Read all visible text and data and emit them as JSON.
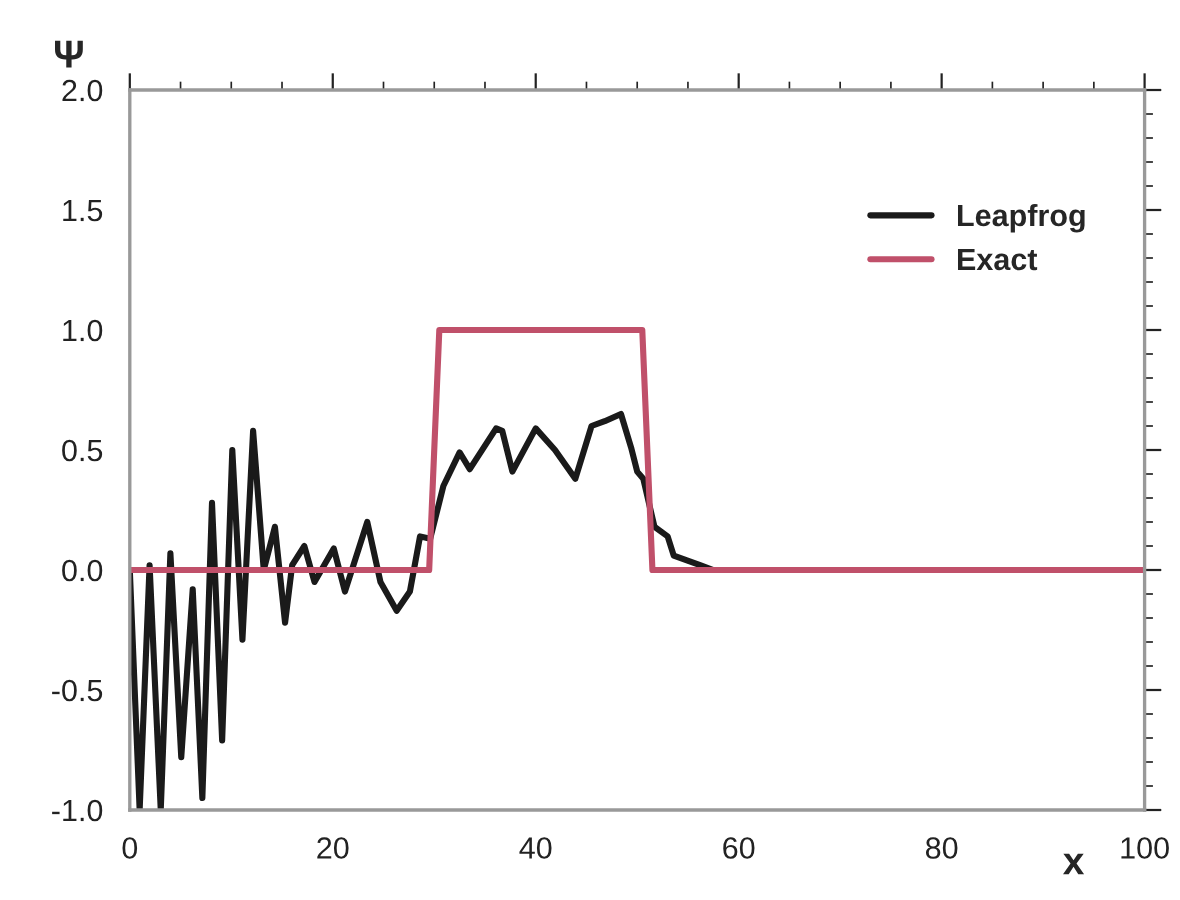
{
  "chart_data": {
    "type": "line",
    "ylabel": "Ψ",
    "xlabel": "x",
    "xlim": [
      0,
      100
    ],
    "ylim": [
      -1.0,
      2.0
    ],
    "xticks": [
      0,
      20,
      40,
      60,
      80,
      100
    ],
    "yticks": [
      {
        "value": -1.0,
        "label": "-1.0"
      },
      {
        "value": -0.5,
        "label": "-0.5"
      },
      {
        "value": 0.0,
        "label": "0.0"
      },
      {
        "value": 0.5,
        "label": "0.5"
      },
      {
        "value": 1.0,
        "label": "1.0"
      },
      {
        "value": 1.5,
        "label": "1.5"
      },
      {
        "value": 2.0,
        "label": "2.0"
      }
    ],
    "grid": false,
    "legend": "top right",
    "marker": "none",
    "line_style": "solid",
    "series": [
      {
        "name": "Leapfrog",
        "color": "#1a1a1a",
        "x": [
          0,
          0.97,
          1.95,
          3.05,
          4.0,
          5.07,
          6.2,
          7.15,
          8.1,
          9.1,
          10.1,
          11.1,
          12.15,
          13.2,
          14.3,
          15.3,
          16.0,
          17.2,
          18.2,
          20.1,
          21.2,
          23.4,
          24.7,
          26.3,
          27.6,
          28.6,
          29.6,
          30.9,
          32.5,
          33.5,
          36.1,
          36.7,
          37.7,
          40.0,
          41.9,
          43.9,
          45.5,
          46.8,
          48.4,
          49.4,
          50.0,
          50.6,
          51.7,
          53.0,
          53.6,
          54.9,
          56.2,
          57.5,
          100
        ],
        "values": [
          0.0,
          -1.0,
          0.02,
          -1.0,
          0.07,
          -0.78,
          -0.08,
          -0.95,
          0.28,
          -0.71,
          0.5,
          -0.29,
          0.58,
          0.0,
          0.18,
          -0.22,
          0.02,
          0.1,
          -0.05,
          0.09,
          -0.09,
          0.2,
          -0.05,
          -0.17,
          -0.09,
          0.14,
          0.13,
          0.35,
          0.49,
          0.42,
          0.59,
          0.58,
          0.41,
          0.59,
          0.5,
          0.38,
          0.6,
          0.62,
          0.65,
          0.51,
          0.41,
          0.38,
          0.18,
          0.14,
          0.06,
          0.04,
          0.02,
          0.0,
          0.0
        ]
      },
      {
        "name": "Exact",
        "color": "#c0506a",
        "x": [
          0,
          29.5,
          30.5,
          50.5,
          51.5,
          100
        ],
        "values": [
          0,
          0,
          1,
          1,
          0,
          0
        ]
      }
    ]
  }
}
